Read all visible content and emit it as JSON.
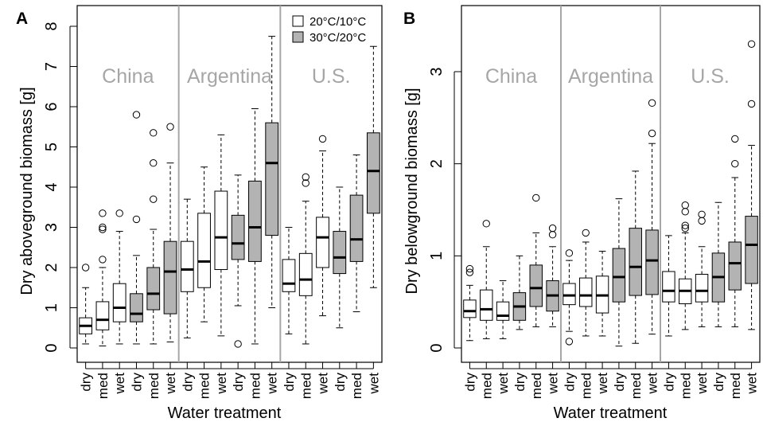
{
  "colors": {
    "low_temp_fill": "#ffffff",
    "high_temp_fill": "#b3b3b3",
    "country_label": "#a6a6a6",
    "separator": "#a6a6a6",
    "axis": "#000000"
  },
  "treatments": [
    "dry",
    "med",
    "wet"
  ],
  "legend": {
    "entries": [
      {
        "label": "20°C/10°C",
        "fill": "#ffffff"
      },
      {
        "label": "30°C/20°C",
        "fill": "#b3b3b3"
      }
    ]
  },
  "chart_data": [
    {
      "panel": "A",
      "type": "boxplot",
      "ylabel": "Dry aboveground biomass [g]",
      "xlabel": "Water treatment",
      "ylim": [
        0,
        8
      ],
      "yticks": [
        0,
        1,
        2,
        3,
        4,
        5,
        6,
        7,
        8
      ],
      "legend_placement": "top-right",
      "groups": [
        {
          "country": "China",
          "boxes": [
            {
              "temp": "20°C/10°C",
              "treatment": "dry",
              "whisker_low": 0.1,
              "q1": 0.35,
              "median": 0.55,
              "q3": 0.75,
              "whisker_high": 1.5,
              "outliers": [
                2.0
              ]
            },
            {
              "temp": "20°C/10°C",
              "treatment": "med",
              "whisker_low": 0.05,
              "q1": 0.45,
              "median": 0.7,
              "q3": 1.15,
              "whisker_high": 2.0,
              "outliers": [
                2.2,
                2.95,
                3.0,
                3.35
              ]
            },
            {
              "temp": "20°C/10°C",
              "treatment": "wet",
              "whisker_low": 0.1,
              "q1": 0.65,
              "median": 1.0,
              "q3": 1.6,
              "whisker_high": 2.9,
              "outliers": [
                3.35
              ]
            },
            {
              "temp": "30°C/20°C",
              "treatment": "dry",
              "whisker_low": 0.1,
              "q1": 0.65,
              "median": 0.85,
              "q3": 1.35,
              "whisker_high": 2.3,
              "outliers": [
                3.2,
                5.8
              ]
            },
            {
              "temp": "30°C/20°C",
              "treatment": "med",
              "whisker_low": 0.1,
              "q1": 0.95,
              "median": 1.35,
              "q3": 2.0,
              "whisker_high": 2.95,
              "outliers": [
                3.7,
                4.6,
                5.35
              ]
            },
            {
              "temp": "30°C/20°C",
              "treatment": "wet",
              "whisker_low": 0.15,
              "q1": 0.85,
              "median": 1.9,
              "q3": 2.65,
              "whisker_high": 4.6,
              "outliers": [
                5.5
              ]
            }
          ]
        },
        {
          "country": "Argentina",
          "boxes": [
            {
              "temp": "20°C/10°C",
              "treatment": "dry",
              "whisker_low": 0.25,
              "q1": 1.4,
              "median": 1.95,
              "q3": 2.65,
              "whisker_high": 3.7,
              "outliers": []
            },
            {
              "temp": "20°C/10°C",
              "treatment": "med",
              "whisker_low": 0.65,
              "q1": 1.5,
              "median": 2.15,
              "q3": 3.35,
              "whisker_high": 4.5,
              "outliers": []
            },
            {
              "temp": "20°C/10°C",
              "treatment": "wet",
              "whisker_low": 0.3,
              "q1": 1.95,
              "median": 2.75,
              "q3": 3.9,
              "whisker_high": 5.3,
              "outliers": []
            },
            {
              "temp": "30°C/20°C",
              "treatment": "dry",
              "whisker_low": 1.05,
              "q1": 2.2,
              "median": 2.6,
              "q3": 3.3,
              "whisker_high": 4.3,
              "outliers": [
                0.1
              ]
            },
            {
              "temp": "30°C/20°C",
              "treatment": "med",
              "whisker_low": 0.1,
              "q1": 2.15,
              "median": 3.0,
              "q3": 4.15,
              "whisker_high": 5.95,
              "outliers": []
            },
            {
              "temp": "30°C/20°C",
              "treatment": "wet",
              "whisker_low": 1.0,
              "q1": 2.8,
              "median": 4.6,
              "q3": 5.6,
              "whisker_high": 7.75,
              "outliers": []
            }
          ]
        },
        {
          "country": "U.S.",
          "boxes": [
            {
              "temp": "20°C/10°C",
              "treatment": "dry",
              "whisker_low": 0.35,
              "q1": 1.4,
              "median": 1.6,
              "q3": 2.2,
              "whisker_high": 3.0,
              "outliers": []
            },
            {
              "temp": "20°C/10°C",
              "treatment": "med",
              "whisker_low": 0.1,
              "q1": 1.3,
              "median": 1.7,
              "q3": 2.35,
              "whisker_high": 3.65,
              "outliers": [
                4.1,
                4.25
              ]
            },
            {
              "temp": "20°C/10°C",
              "treatment": "wet",
              "whisker_low": 0.8,
              "q1": 2.0,
              "median": 2.75,
              "q3": 3.25,
              "whisker_high": 4.9,
              "outliers": [
                5.2
              ]
            },
            {
              "temp": "30°C/20°C",
              "treatment": "dry",
              "whisker_low": 0.5,
              "q1": 1.85,
              "median": 2.25,
              "q3": 2.9,
              "whisker_high": 4.0,
              "outliers": []
            },
            {
              "temp": "30°C/20°C",
              "treatment": "med",
              "whisker_low": 0.9,
              "q1": 2.15,
              "median": 2.7,
              "q3": 3.8,
              "whisker_high": 4.8,
              "outliers": []
            },
            {
              "temp": "30°C/20°C",
              "treatment": "wet",
              "whisker_low": 1.5,
              "q1": 3.35,
              "median": 4.4,
              "q3": 5.35,
              "whisker_high": 7.5,
              "outliers": []
            }
          ]
        }
      ]
    },
    {
      "panel": "B",
      "type": "boxplot",
      "ylabel": "Dry belowground biomass [g]",
      "xlabel": "Water treatment",
      "ylim": [
        -0.1,
        3.6
      ],
      "yticks": [
        0,
        1,
        2,
        3
      ],
      "groups": [
        {
          "country": "China",
          "boxes": [
            {
              "temp": "20°C/10°C",
              "treatment": "dry",
              "whisker_low": 0.08,
              "q1": 0.33,
              "median": 0.4,
              "q3": 0.52,
              "whisker_high": 0.68,
              "outliers": [
                0.82,
                0.86
              ]
            },
            {
              "temp": "20°C/10°C",
              "treatment": "med",
              "whisker_low": 0.1,
              "q1": 0.3,
              "median": 0.42,
              "q3": 0.63,
              "whisker_high": 1.1,
              "outliers": [
                1.35
              ]
            },
            {
              "temp": "20°C/10°C",
              "treatment": "wet",
              "whisker_low": 0.1,
              "q1": 0.3,
              "median": 0.35,
              "q3": 0.5,
              "whisker_high": 0.73,
              "outliers": []
            },
            {
              "temp": "30°C/20°C",
              "treatment": "dry",
              "whisker_low": 0.2,
              "q1": 0.3,
              "median": 0.45,
              "q3": 0.6,
              "whisker_high": 1.0,
              "outliers": []
            },
            {
              "temp": "30°C/20°C",
              "treatment": "med",
              "whisker_low": 0.23,
              "q1": 0.45,
              "median": 0.65,
              "q3": 0.9,
              "whisker_high": 1.25,
              "outliers": [
                1.63
              ]
            },
            {
              "temp": "30°C/20°C",
              "treatment": "wet",
              "whisker_low": 0.23,
              "q1": 0.4,
              "median": 0.57,
              "q3": 0.73,
              "whisker_high": 1.1,
              "outliers": [
                1.23,
                1.3
              ]
            }
          ]
        },
        {
          "country": "Argentina",
          "boxes": [
            {
              "temp": "20°C/10°C",
              "treatment": "dry",
              "whisker_low": 0.18,
              "q1": 0.47,
              "median": 0.57,
              "q3": 0.7,
              "whisker_high": 0.95,
              "outliers": [
                0.07,
                1.03
              ]
            },
            {
              "temp": "20°C/10°C",
              "treatment": "med",
              "whisker_low": 0.13,
              "q1": 0.45,
              "median": 0.57,
              "q3": 0.76,
              "whisker_high": 1.15,
              "outliers": [
                1.25
              ]
            },
            {
              "temp": "20°C/10°C",
              "treatment": "wet",
              "whisker_low": 0.13,
              "q1": 0.38,
              "median": 0.57,
              "q3": 0.78,
              "whisker_high": 1.05,
              "outliers": []
            },
            {
              "temp": "30°C/20°C",
              "treatment": "dry",
              "whisker_low": 0.02,
              "q1": 0.5,
              "median": 0.77,
              "q3": 1.08,
              "whisker_high": 1.62,
              "outliers": []
            },
            {
              "temp": "30°C/20°C",
              "treatment": "med",
              "whisker_low": 0.05,
              "q1": 0.57,
              "median": 0.88,
              "q3": 1.3,
              "whisker_high": 1.92,
              "outliers": []
            },
            {
              "temp": "30°C/20°C",
              "treatment": "wet",
              "whisker_low": 0.15,
              "q1": 0.58,
              "median": 0.95,
              "q3": 1.28,
              "whisker_high": 2.22,
              "outliers": [
                2.33,
                2.66
              ]
            }
          ]
        },
        {
          "country": "U.S.",
          "boxes": [
            {
              "temp": "20°C/10°C",
              "treatment": "dry",
              "whisker_low": 0.13,
              "q1": 0.5,
              "median": 0.62,
              "q3": 0.83,
              "whisker_high": 1.22,
              "outliers": []
            },
            {
              "temp": "20°C/10°C",
              "treatment": "med",
              "whisker_low": 0.2,
              "q1": 0.48,
              "median": 0.62,
              "q3": 0.75,
              "whisker_high": 1.25,
              "outliers": [
                1.3,
                1.33,
                1.48,
                1.55
              ]
            },
            {
              "temp": "20°C/10°C",
              "treatment": "wet",
              "whisker_low": 0.23,
              "q1": 0.5,
              "median": 0.62,
              "q3": 0.8,
              "whisker_high": 1.1,
              "outliers": [
                1.38,
                1.45
              ]
            },
            {
              "temp": "30°C/20°C",
              "treatment": "dry",
              "whisker_low": 0.23,
              "q1": 0.5,
              "median": 0.77,
              "q3": 1.03,
              "whisker_high": 1.58,
              "outliers": []
            },
            {
              "temp": "30°C/20°C",
              "treatment": "med",
              "whisker_low": 0.23,
              "q1": 0.63,
              "median": 0.92,
              "q3": 1.15,
              "whisker_high": 1.85,
              "outliers": [
                2.0,
                2.27
              ]
            },
            {
              "temp": "30°C/20°C",
              "treatment": "wet",
              "whisker_low": 0.2,
              "q1": 0.7,
              "median": 1.12,
              "q3": 1.43,
              "whisker_high": 2.2,
              "outliers": [
                2.65,
                3.3
              ]
            }
          ]
        }
      ]
    }
  ]
}
